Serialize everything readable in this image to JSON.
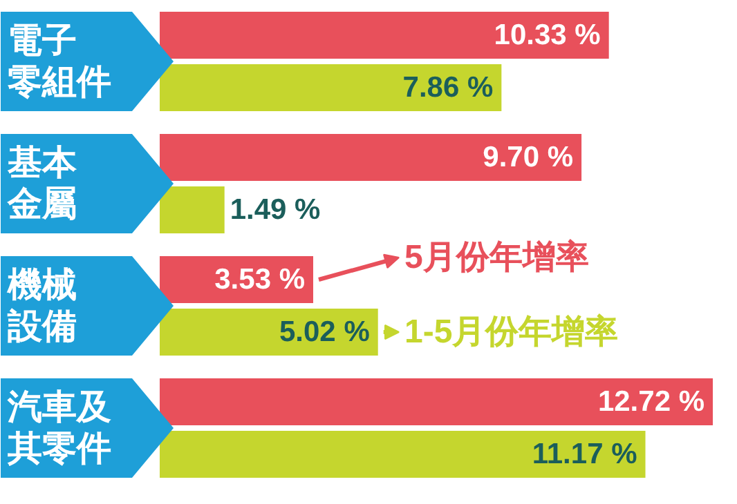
{
  "chart_data": {
    "type": "bar",
    "orientation": "horizontal",
    "legend": "right",
    "categories": [
      "電子零組件",
      "基本金屬",
      "機械設備",
      "汽車及其零件"
    ],
    "series": [
      {
        "name": "5月份年增率",
        "color": "#e8505b",
        "values": [
          10.33,
          9.7,
          3.53,
          12.72
        ],
        "value_labels": [
          "10.33 %",
          "9.70 %",
          "3.53 %",
          "12.72 %"
        ]
      },
      {
        "name": "1-5月份年增率",
        "color": "#c5d62e",
        "values": [
          7.86,
          1.49,
          5.02,
          11.17
        ],
        "value_labels": [
          "7.86 %",
          "1.49 %",
          "5.02 %",
          "11.17 %"
        ]
      }
    ]
  }
}
